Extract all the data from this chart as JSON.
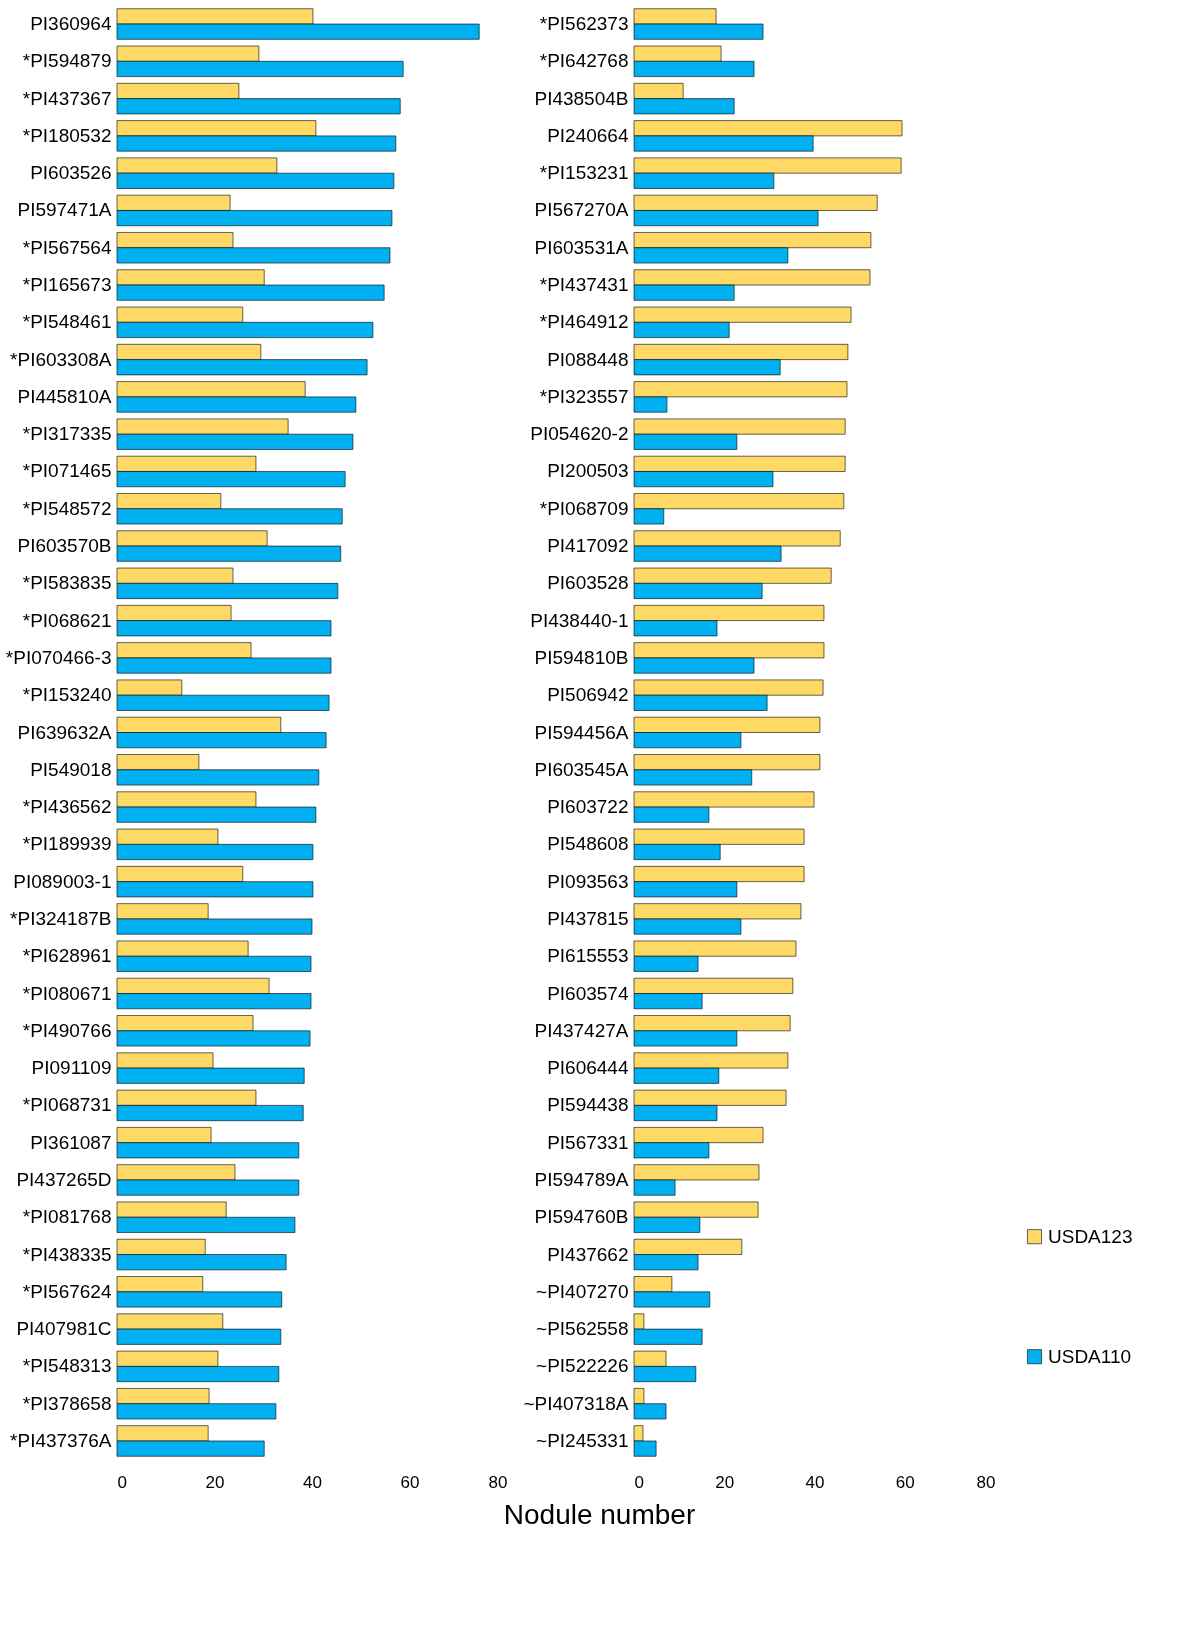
{
  "chart_data": [
    {
      "type": "bar",
      "orientation": "horizontal",
      "xlabel": "Nodule number",
      "legend": false,
      "xlim": [
        0,
        80
      ],
      "xticks": [
        0,
        20,
        40,
        60,
        80
      ],
      "categories": [
        "PI360964",
        "*PI594879",
        "*PI437367",
        "*PI180532",
        "PI603526",
        "PI597471A",
        "*PI567564",
        "*PI165673",
        "*PI548461",
        "*PI603308A",
        "PI445810A",
        "*PI317335",
        "*PI071465",
        "*PI548572",
        "PI603570B",
        "*PI583835",
        "*PI068621",
        "*PI070466-3",
        "*PI153240",
        "PI639632A",
        "PI549018",
        "*PI436562",
        "*PI189939",
        "PI089003-1",
        "*PI324187B",
        "*PI628961",
        "*PI080671",
        "*PI490766",
        "PI091109",
        "*PI068731",
        "PI361087",
        "PI437265D",
        "*PI081768",
        "*PI438335",
        "*PI567624",
        "PI407981C",
        "*PI548313",
        "*PI378658",
        "*PI437376A"
      ],
      "series": [
        {
          "color": "#ffd966",
          "values": [
            40.2,
            29.1,
            25.0,
            40.8,
            32.8,
            23.2,
            23.8,
            30.2,
            25.8,
            29.5,
            38.6,
            35.1,
            28.5,
            21.3,
            30.8,
            23.8,
            23.4,
            27.5,
            13.3,
            33.6,
            16.8,
            28.5,
            20.7,
            25.8,
            18.7,
            26.9,
            31.2,
            27.9,
            19.7,
            28.5,
            19.3,
            24.2,
            22.4,
            18.1,
            17.6,
            21.7,
            20.7,
            18.9,
            18.7
          ]
        },
        {
          "color": "#00b0f0",
          "values": [
            74.3,
            58.7,
            58.1,
            57.2,
            56.8,
            56.4,
            56.0,
            54.8,
            52.5,
            51.3,
            49.0,
            48.4,
            46.8,
            46.2,
            45.9,
            45.3,
            43.9,
            43.9,
            43.5,
            42.9,
            41.4,
            40.8,
            40.2,
            40.2,
            40.0,
            39.8,
            39.8,
            39.6,
            38.4,
            38.2,
            37.3,
            37.3,
            36.5,
            34.7,
            33.8,
            33.6,
            33.2,
            32.6,
            30.2
          ]
        }
      ]
    },
    {
      "type": "bar",
      "orientation": "horizontal",
      "legend": "right",
      "xlim": [
        0,
        80
      ],
      "xticks": [
        0,
        20,
        40,
        60,
        80
      ],
      "categories": [
        "*PI562373",
        "*PI642768",
        "PI438504B",
        "PI240664",
        "*PI153231",
        "PI567270A",
        "PI603531A",
        "*PI437431",
        "*PI464912",
        "PI088448",
        "*PI323557",
        "PI054620-2",
        "PI200503",
        "*PI068709",
        "PI417092",
        "PI603528",
        "PI438440-1",
        "PI594810B",
        "PI506942",
        "PI594456A",
        "PI603545A",
        "PI603722",
        "PI548608",
        "PI093563",
        "PI437815",
        "PI615553",
        "PI603574",
        "PI437427A",
        "PI606444",
        "PI594438",
        "PI567331",
        "PI594789A",
        "PI594760B",
        "PI437662",
        "~PI407270",
        "~PI562558",
        "~PI522226",
        "~PI407318A",
        "~PI245331"
      ],
      "series": [
        {
          "name": "USDA123",
          "color": "#ffd966",
          "values": [
            18.2,
            19.3,
            10.9,
            59.4,
            59.2,
            53.9,
            52.5,
            52.3,
            48.1,
            47.4,
            47.2,
            46.8,
            46.8,
            46.5,
            45.7,
            43.7,
            42.1,
            42.1,
            41.9,
            41.2,
            41.2,
            39.9,
            37.7,
            37.7,
            37.0,
            35.9,
            35.2,
            34.6,
            34.1,
            33.7,
            28.6,
            27.7,
            27.5,
            23.9,
            8.4,
            2.2,
            7.1,
            2.2,
            2.0
          ]
        },
        {
          "name": "USDA110",
          "color": "#00b0f0",
          "values": [
            28.6,
            26.6,
            22.2,
            39.7,
            31.0,
            40.8,
            34.1,
            22.2,
            21.1,
            32.4,
            7.3,
            22.8,
            30.8,
            6.6,
            32.6,
            28.4,
            18.4,
            26.6,
            29.5,
            23.7,
            26.1,
            16.6,
            19.1,
            22.8,
            23.7,
            14.2,
            15.1,
            22.8,
            18.8,
            18.4,
            16.6,
            9.1,
            14.6,
            14.2,
            16.8,
            15.1,
            13.7,
            7.1,
            4.9
          ]
        }
      ]
    }
  ]
}
